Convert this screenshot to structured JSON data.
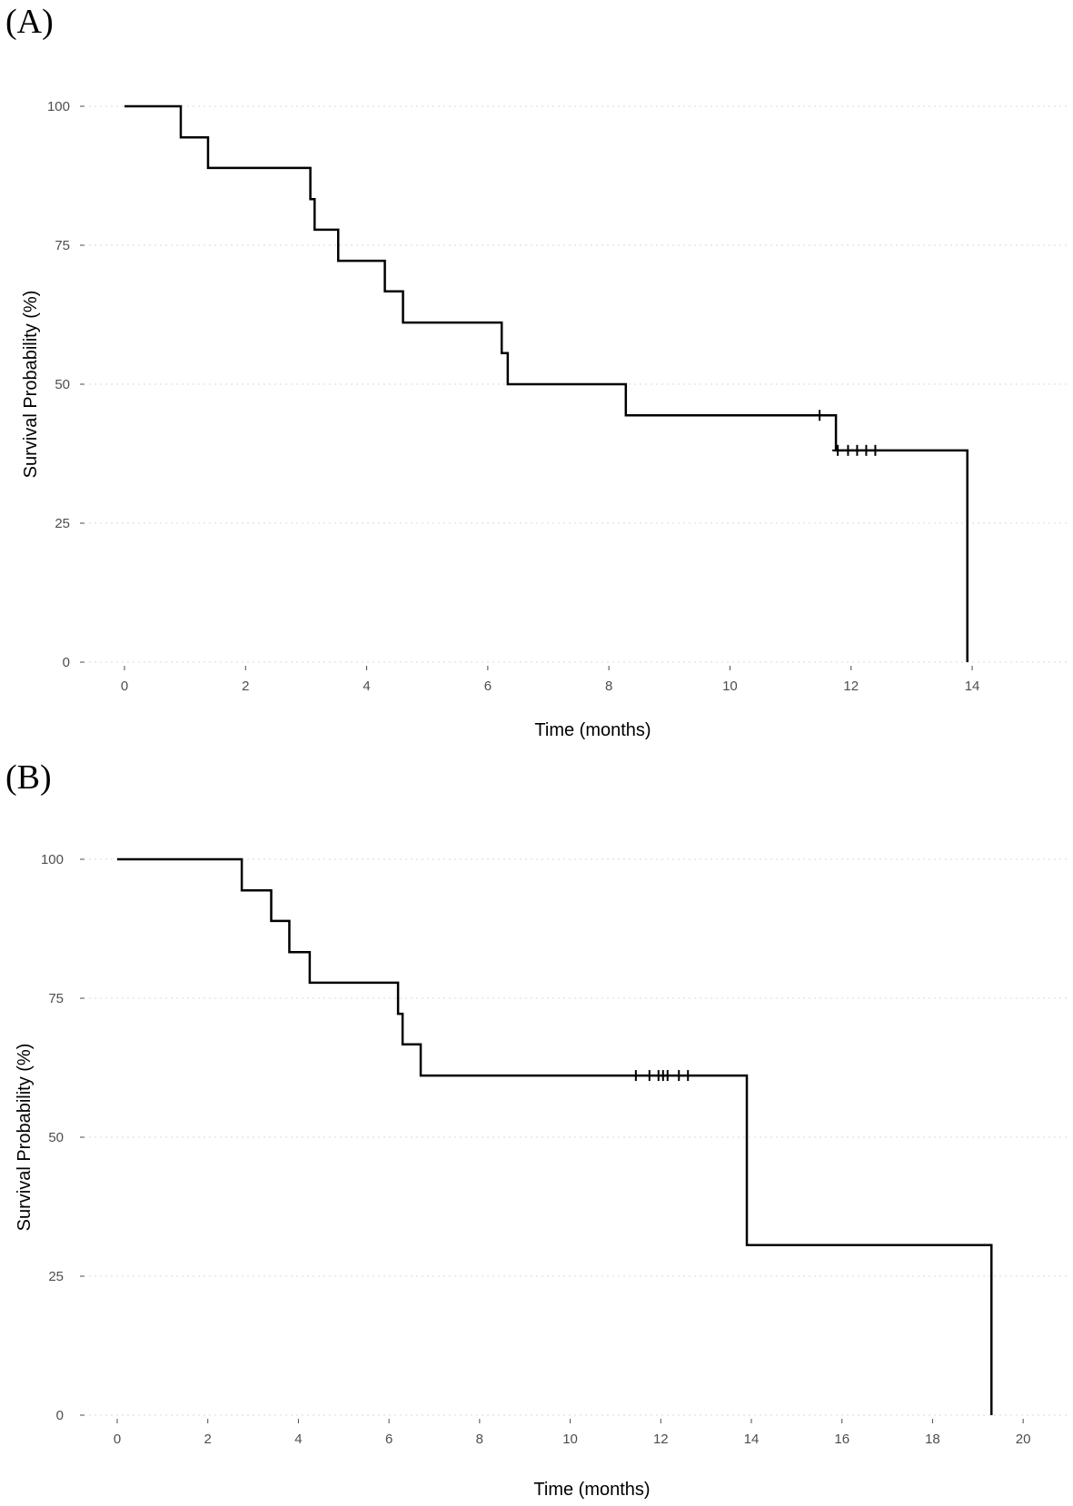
{
  "panels": [
    {
      "label": "(A)"
    },
    {
      "label": "(B)"
    }
  ],
  "chart_data": [
    {
      "type": "line",
      "subtype": "kaplan-meier-step",
      "panel": "(A)",
      "xlabel": "Time (months)",
      "ylabel": "Survival Probability (%)",
      "xlim": [
        0,
        15.5
      ],
      "ylim": [
        0,
        100
      ],
      "xticks": [
        0,
        2,
        4,
        6,
        8,
        10,
        12,
        14
      ],
      "yticks": [
        0,
        25,
        50,
        75,
        100
      ],
      "grid": "horizontal-dotted",
      "steps": {
        "x": [
          0,
          0.93,
          1.38,
          3.07,
          3.14,
          3.53,
          4.3,
          4.6,
          6.23,
          6.33,
          8.28,
          11.75,
          13.92
        ],
        "y": [
          100,
          94.4,
          88.9,
          83.3,
          77.8,
          72.2,
          66.7,
          61.1,
          55.6,
          50.0,
          44.4,
          38.1,
          0
        ]
      },
      "end_time": 13.92,
      "censored": {
        "x": [
          11.48,
          11.78,
          11.95,
          12.1,
          12.25,
          12.4
        ],
        "y": [
          44.4,
          38.1,
          38.1,
          38.1,
          38.1,
          38.1
        ]
      }
    },
    {
      "type": "line",
      "subtype": "kaplan-meier-step",
      "panel": "(B)",
      "xlabel": "Time (months)",
      "ylabel": "Survival Probability (%)",
      "xlim": [
        0,
        21
      ],
      "ylim": [
        0,
        100
      ],
      "xticks": [
        0,
        2,
        4,
        6,
        8,
        10,
        12,
        14,
        16,
        18,
        20
      ],
      "yticks": [
        0,
        25,
        50,
        75,
        100
      ],
      "grid": "horizontal-dotted",
      "steps": {
        "x": [
          0,
          2.75,
          3.4,
          3.8,
          4.25,
          6.2,
          6.3,
          6.7,
          13.9,
          19.3
        ],
        "y": [
          100,
          94.4,
          88.9,
          83.3,
          77.8,
          72.2,
          66.7,
          61.1,
          30.6,
          0
        ]
      },
      "end_time": 19.3,
      "censored": {
        "x": [
          11.45,
          11.75,
          11.95,
          12.05,
          12.15,
          12.4,
          12.6
        ],
        "y": [
          61.1,
          61.1,
          61.1,
          61.1,
          61.1,
          61.1,
          61.1
        ]
      }
    }
  ]
}
